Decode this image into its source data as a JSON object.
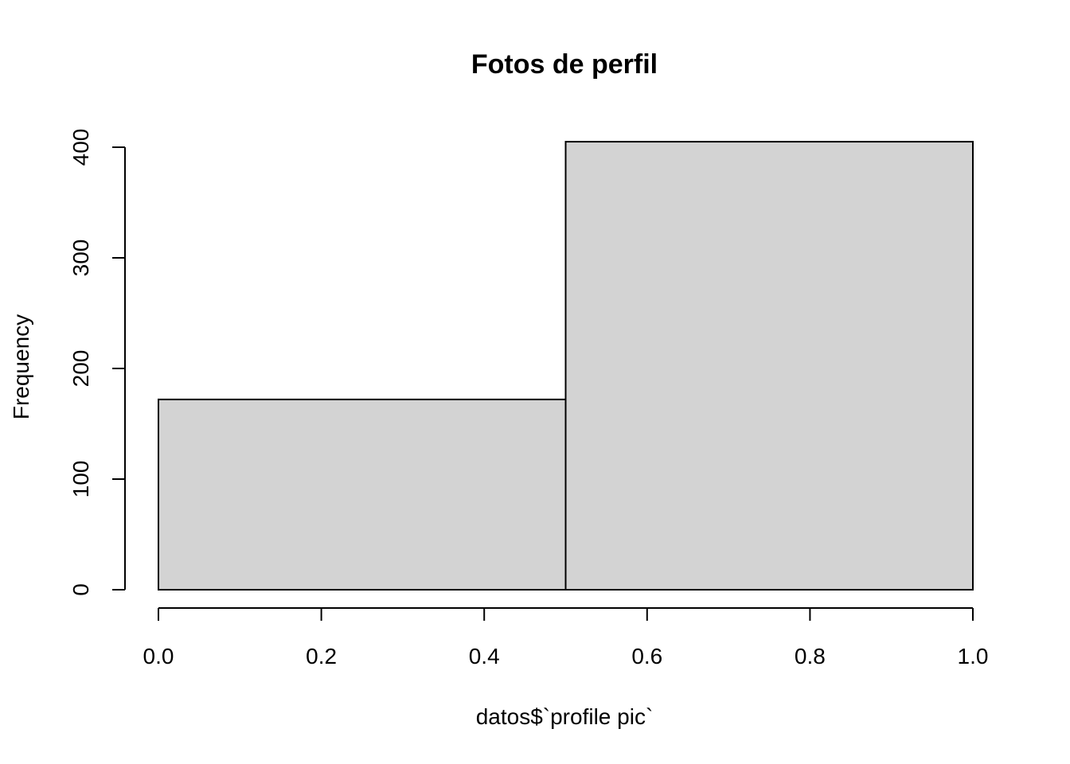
{
  "chart_data": {
    "type": "bar",
    "subtype": "histogram",
    "title": "Fotos de perfil",
    "xlabel": "datos$`profile pic`",
    "ylabel": "Frequency",
    "bins": [
      {
        "from": 0.0,
        "to": 0.5,
        "value": 172
      },
      {
        "from": 0.5,
        "to": 1.0,
        "value": 405
      }
    ],
    "xlim": [
      0.0,
      1.0
    ],
    "ylim": [
      0,
      400
    ],
    "x_ticks": [
      "0.0",
      "0.2",
      "0.4",
      "0.6",
      "0.8",
      "1.0"
    ],
    "y_ticks": [
      "0",
      "100",
      "200",
      "300",
      "400"
    ],
    "bar_color": "#d3d3d3",
    "grid": false,
    "legend": "none"
  }
}
